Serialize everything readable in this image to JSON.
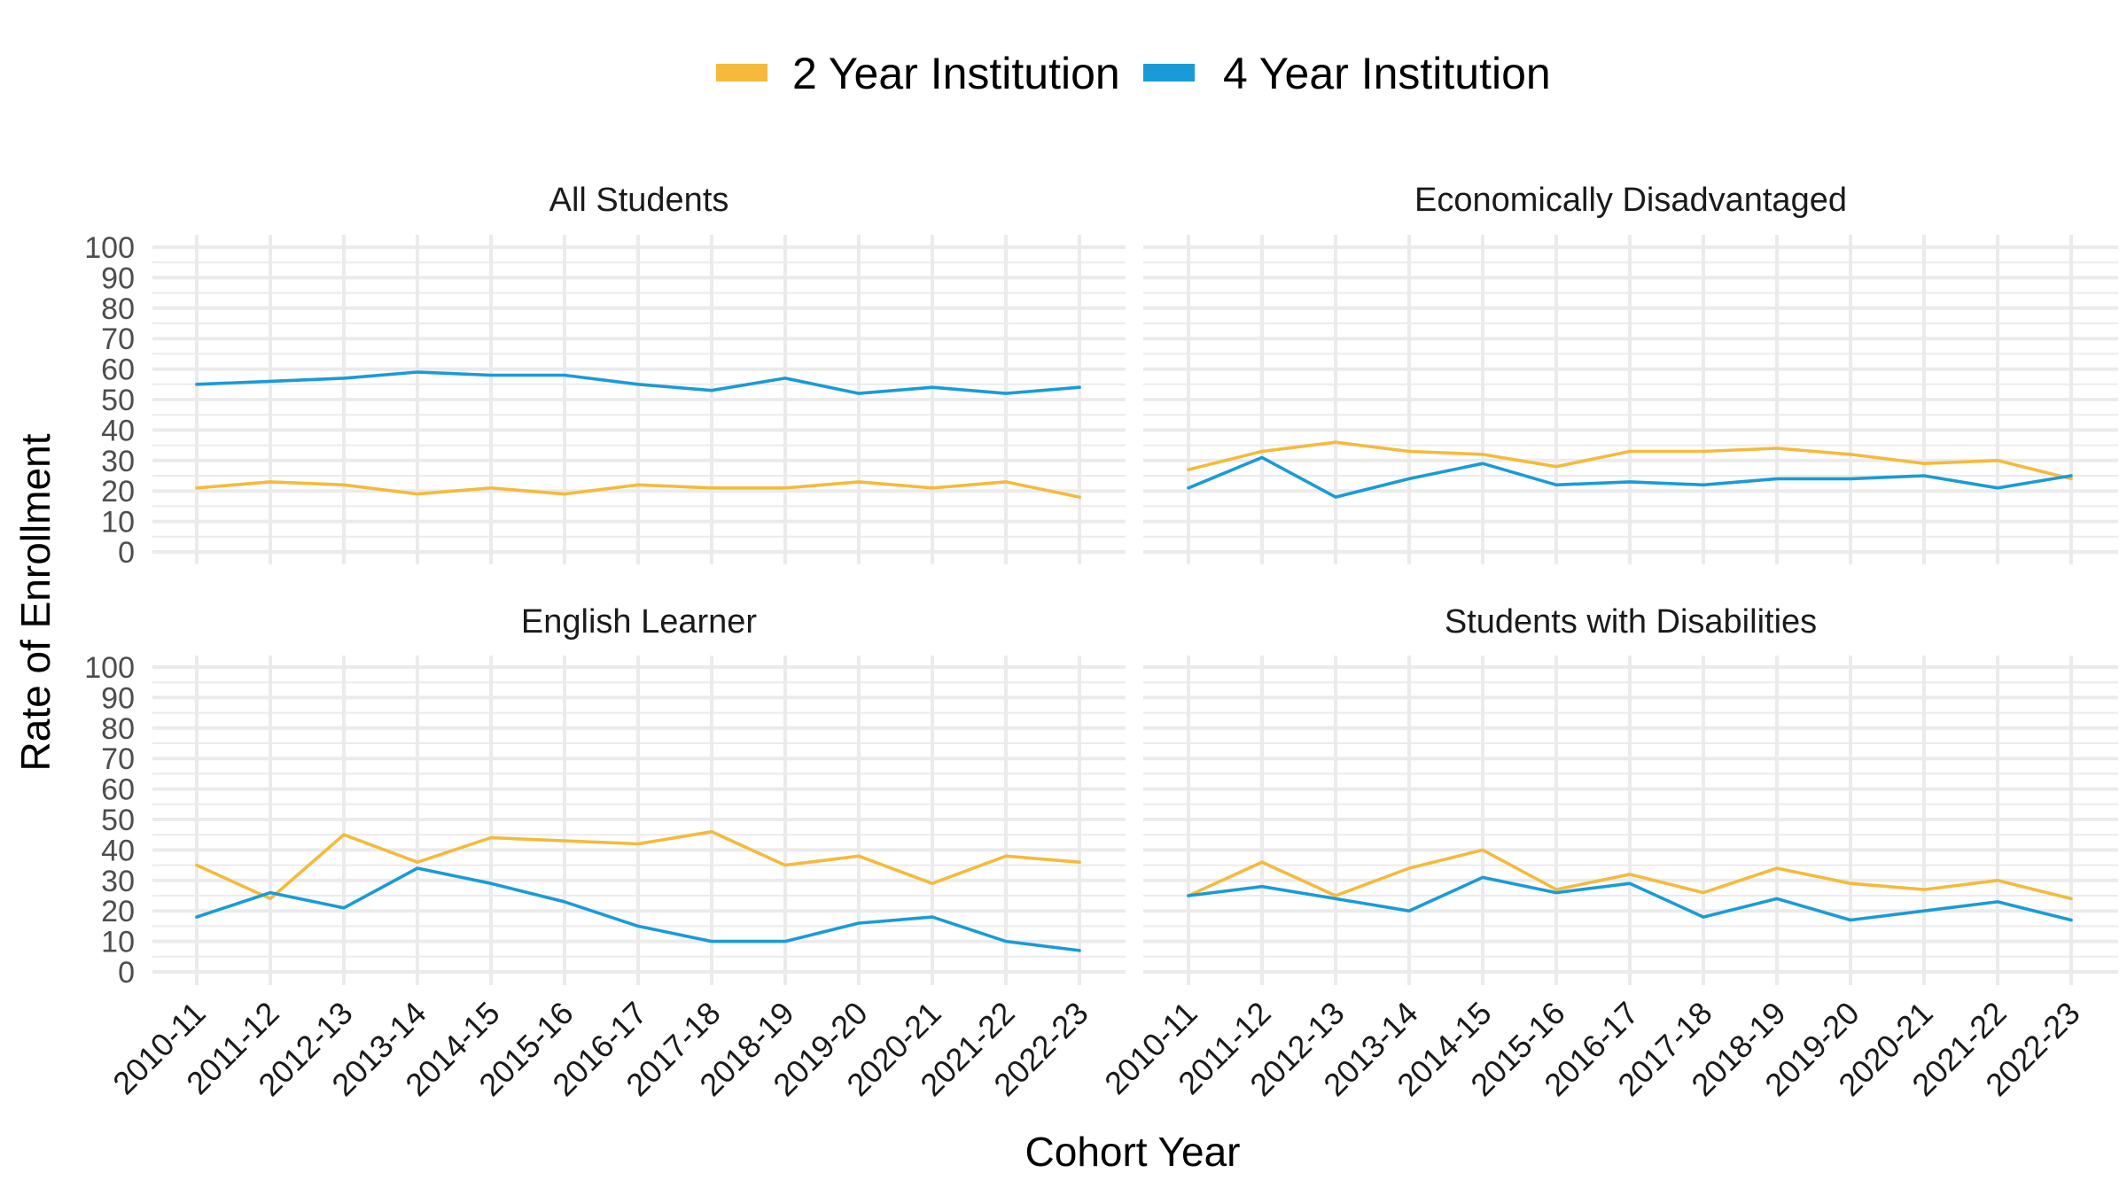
{
  "chart_data": {
    "type": "line",
    "xlabel": "Cohort Year",
    "ylabel": "Rate of Enrollment",
    "ylim": [
      0,
      100
    ],
    "y_ticks": [
      0,
      10,
      20,
      30,
      40,
      50,
      60,
      70,
      80,
      90,
      100
    ],
    "grid": true,
    "legend_position": "top",
    "categories": [
      "2010-11",
      "2011-12",
      "2012-13",
      "2013-14",
      "2014-15",
      "2015-16",
      "2016-17",
      "2017-18",
      "2018-19",
      "2019-20",
      "2020-21",
      "2021-22",
      "2022-23"
    ],
    "series_styles": [
      {
        "name": "2 Year Institution",
        "color": "#F5BA3C"
      },
      {
        "name": "4 Year Institution",
        "color": "#1A9BD7"
      }
    ],
    "panels": [
      {
        "title": "All Students",
        "series": [
          {
            "name": "2 Year Institution",
            "values": [
              21,
              23,
              22,
              19,
              21,
              19,
              22,
              21,
              21,
              23,
              21,
              23,
              18
            ]
          },
          {
            "name": "4 Year Institution",
            "values": [
              55,
              56,
              57,
              59,
              58,
              58,
              55,
              53,
              57,
              52,
              54,
              52,
              54
            ]
          }
        ]
      },
      {
        "title": "Economically Disadvantaged",
        "series": [
          {
            "name": "2 Year Institution",
            "values": [
              27,
              33,
              36,
              33,
              32,
              28,
              33,
              33,
              34,
              32,
              29,
              30,
              24
            ]
          },
          {
            "name": "4 Year Institution",
            "values": [
              21,
              31,
              18,
              24,
              29,
              22,
              23,
              22,
              24,
              24,
              25,
              21,
              25
            ]
          }
        ]
      },
      {
        "title": "English Learner",
        "series": [
          {
            "name": "2 Year Institution",
            "values": [
              35,
              24,
              45,
              36,
              44,
              43,
              42,
              46,
              35,
              38,
              29,
              38,
              36
            ]
          },
          {
            "name": "4 Year Institution",
            "values": [
              18,
              26,
              21,
              34,
              29,
              23,
              15,
              10,
              10,
              16,
              18,
              10,
              7
            ]
          }
        ]
      },
      {
        "title": "Students with Disabilities",
        "series": [
          {
            "name": "2 Year Institution",
            "values": [
              25,
              36,
              25,
              34,
              40,
              27,
              32,
              26,
              34,
              29,
              27,
              30,
              24
            ]
          },
          {
            "name": "4 Year Institution",
            "values": [
              25,
              28,
              24,
              20,
              31,
              26,
              29,
              18,
              24,
              17,
              20,
              23,
              17
            ]
          }
        ]
      }
    ]
  }
}
